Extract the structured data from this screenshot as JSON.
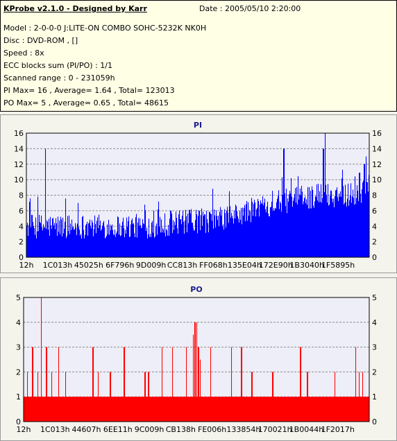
{
  "info": {
    "title": "KProbe v2.1.0 - Designed by Karr",
    "date": "Date : 2005/05/10 2:20:00",
    "model": "Model : 2-0-0-0 J:LITE-ON COMBO SOHC-5232K NK0H",
    "disc": "Disc : DVD-ROM ,  []",
    "speed": "Speed : 8x",
    "ecc": "ECC blocks sum (PI/PO) : 1/1",
    "range": "Scanned range : 0 - 231059h",
    "pi_stats": "PI Max= 16 , Average= 1.64 , Total= 123013",
    "po_stats": "PO Max= 5 , Average= 0.65 , Total= 48615"
  },
  "colors": {
    "pi": "#0000ff",
    "po": "#ff0000",
    "plot_bg": "#eeeef8",
    "grid": "#8c8c8c",
    "title": "#1a1a8c"
  },
  "chart_data": [
    {
      "type": "bar",
      "title": "PI",
      "series": [
        {
          "name": "PI",
          "color": "#0000ff"
        }
      ],
      "x_ticks": [
        "12h",
        "1C013h",
        "45025h",
        "6F796h",
        "9D009h",
        "CC813h",
        "FF068h",
        "135E04h",
        "172E90h",
        "1B3040h",
        "1F5895h"
      ],
      "ylim": [
        0,
        16
      ],
      "y_ticks": [
        0,
        2,
        4,
        6,
        8,
        10,
        12,
        14,
        16
      ],
      "grid": true,
      "baseline_profile": [
        [
          0,
          4
        ],
        [
          0.05,
          4
        ],
        [
          0.1,
          4
        ],
        [
          0.15,
          4
        ],
        [
          0.2,
          4
        ],
        [
          0.25,
          4
        ],
        [
          0.3,
          4
        ],
        [
          0.35,
          4
        ],
        [
          0.4,
          4.2
        ],
        [
          0.45,
          4.5
        ],
        [
          0.5,
          4.6
        ],
        [
          0.55,
          4.8
        ],
        [
          0.6,
          5.2
        ],
        [
          0.65,
          6
        ],
        [
          0.7,
          6.8
        ],
        [
          0.75,
          7.2
        ],
        [
          0.8,
          7.6
        ],
        [
          0.85,
          8
        ],
        [
          0.9,
          8
        ],
        [
          0.95,
          8.2
        ],
        [
          1,
          8.5
        ]
      ],
      "peaks": [
        [
          0.055,
          14
        ],
        [
          0.15,
          7
        ],
        [
          0.37,
          6
        ],
        [
          0.42,
          6
        ],
        [
          0.585,
          6.5
        ],
        [
          0.75,
          14
        ],
        [
          0.87,
          16
        ],
        [
          0.865,
          14
        ],
        [
          0.99,
          13
        ],
        [
          0.985,
          12
        ]
      ]
    },
    {
      "type": "bar",
      "title": "PO",
      "series": [
        {
          "name": "PO",
          "color": "#ff0000"
        }
      ],
      "x_ticks": [
        "12h",
        "1C013h",
        "44607h",
        "6EE11h",
        "9C009h",
        "CB138h",
        "FE006h",
        "133854h",
        "170021h",
        "1B0044h",
        "1F2017h"
      ],
      "ylim": [
        0,
        5
      ],
      "y_ticks": [
        0,
        1,
        2,
        3,
        4,
        5
      ],
      "grid": true,
      "baseline_level": 1,
      "peaks": [
        [
          0.01,
          2
        ],
        [
          0.025,
          3
        ],
        [
          0.04,
          2
        ],
        [
          0.05,
          5
        ],
        [
          0.065,
          3
        ],
        [
          0.08,
          2
        ],
        [
          0.1,
          3
        ],
        [
          0.12,
          2
        ],
        [
          0.2,
          3
        ],
        [
          0.215,
          2
        ],
        [
          0.25,
          2
        ],
        [
          0.29,
          3
        ],
        [
          0.35,
          2
        ],
        [
          0.36,
          2
        ],
        [
          0.4,
          3
        ],
        [
          0.43,
          3
        ],
        [
          0.47,
          3
        ],
        [
          0.49,
          3.5
        ],
        [
          0.495,
          4
        ],
        [
          0.5,
          4
        ],
        [
          0.505,
          3
        ],
        [
          0.51,
          2.5
        ],
        [
          0.54,
          3
        ],
        [
          0.6,
          3
        ],
        [
          0.63,
          3
        ],
        [
          0.66,
          2
        ],
        [
          0.72,
          2
        ],
        [
          0.8,
          3
        ],
        [
          0.82,
          2
        ],
        [
          0.9,
          2
        ],
        [
          0.96,
          3
        ],
        [
          0.97,
          2
        ],
        [
          0.98,
          2
        ]
      ]
    }
  ]
}
